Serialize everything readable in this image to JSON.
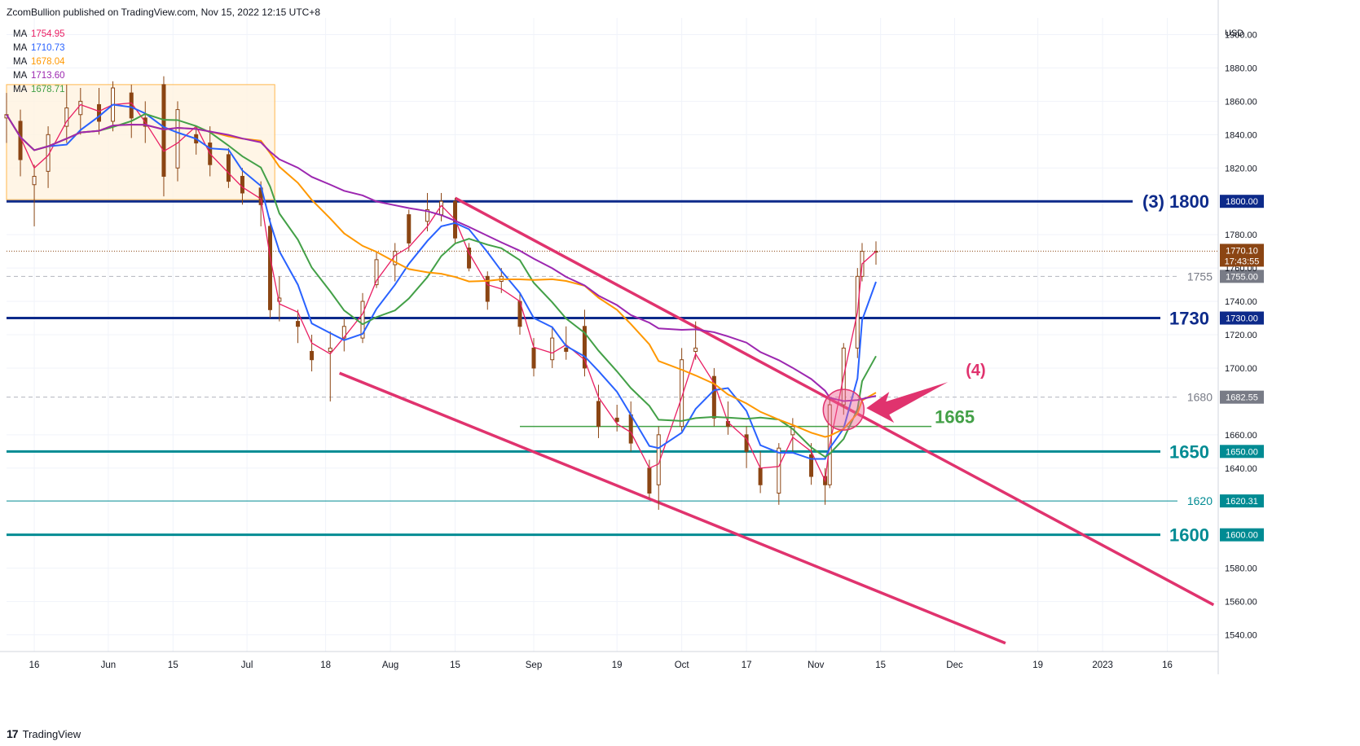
{
  "header": {
    "published": "ZcomBullion published on TradingView.com, Nov 15, 2022 12:15 UTC+8"
  },
  "footer": {
    "brand": "TradingView",
    "logo_text": "17"
  },
  "colors": {
    "ma_fast": "#e91e63",
    "ma_20": "#2962ff",
    "ma_50": "#ff9800",
    "ma_200": "#9c27b0",
    "ma_30": "#43a047",
    "candle": "#8b4513",
    "level_navy": "#0d2a8a",
    "level_teal": "#008b93",
    "channel": "#e0336e"
  },
  "chart_data": {
    "type": "candlestick",
    "currency": "USD",
    "yaxis_ticks": [
      1900,
      1880,
      1860,
      1840,
      1820,
      1780,
      1760,
      1740,
      1720,
      1700,
      1660,
      1640,
      1580,
      1560,
      1540
    ],
    "yaxis_tick_labels": [
      "1900.00",
      "1880.00",
      "1860.00",
      "1840.00",
      "1820.00",
      "1780.00",
      "1760.00",
      "1740.00",
      "1720.00",
      "1700.00",
      "1660.00",
      "1640.00",
      "1580.00",
      "1560.00",
      "1540.00"
    ],
    "ylim": [
      1530,
      1910
    ],
    "xaxis_labels": [
      {
        "label": "16",
        "date": "2022-05-16"
      },
      {
        "label": "Jun",
        "date": "2022-06-01"
      },
      {
        "label": "15",
        "date": "2022-06-15"
      },
      {
        "label": "Jul",
        "date": "2022-07-01"
      },
      {
        "label": "18",
        "date": "2022-07-18"
      },
      {
        "label": "Aug",
        "date": "2022-08-01"
      },
      {
        "label": "15",
        "date": "2022-08-15"
      },
      {
        "label": "Sep",
        "date": "2022-09-01"
      },
      {
        "label": "19",
        "date": "2022-09-19"
      },
      {
        "label": "Oct",
        "date": "2022-10-03"
      },
      {
        "label": "17",
        "date": "2022-10-17"
      },
      {
        "label": "Nov",
        "date": "2022-11-01"
      },
      {
        "label": "15",
        "date": "2022-11-15"
      },
      {
        "label": "Dec",
        "date": "2022-12-01"
      },
      {
        "label": "19",
        "date": "2022-12-19"
      },
      {
        "label": "2023",
        "date": "2023-01-02"
      },
      {
        "label": "16",
        "date": "2023-01-16"
      }
    ],
    "xlim": [
      "2022-05-10",
      "2023-01-27"
    ],
    "moving_averages": [
      {
        "label": "MA",
        "value": "1754.95",
        "color_key": "ma_fast"
      },
      {
        "label": "MA",
        "value": "1710.73",
        "color_key": "ma_20"
      },
      {
        "label": "MA",
        "value": "1678.04",
        "color_key": "ma_50"
      },
      {
        "label": "MA",
        "value": "1713.60",
        "color_key": "ma_200"
      },
      {
        "label": "MA",
        "value": "1678.71",
        "color_key": "ma_30"
      }
    ],
    "horizontal_levels": [
      {
        "value": 1800,
        "label": "(3) 1800",
        "price_tag": "1800.00",
        "style": "thick",
        "color_key": "level_navy"
      },
      {
        "value": 1730,
        "label": "1730",
        "price_tag": "1730.00",
        "style": "thick",
        "color_key": "level_navy"
      },
      {
        "value": 1650,
        "label": "1650",
        "price_tag": "1650.00",
        "style": "thick",
        "color_key": "level_teal"
      },
      {
        "value": 1600,
        "label": "1600",
        "price_tag": "1600.00",
        "style": "thick",
        "color_key": "level_teal"
      },
      {
        "value": 1620.31,
        "label": "1620",
        "price_tag": "1620.31",
        "style": "thin",
        "color_key": "level_teal"
      },
      {
        "value": 1755,
        "label": "1755",
        "price_tag": "1755.00",
        "style": "dashed",
        "color_key": "gray"
      },
      {
        "value": 1682.55,
        "label": "1680",
        "price_tag": "1682.55",
        "style": "dashed",
        "color_key": "gray"
      }
    ],
    "last_price": {
      "value": 1770.1,
      "label": "1770.10",
      "countdown": "17:43:55"
    },
    "support_1665": {
      "value": 1665,
      "label": "1665",
      "x_start": "2022-08-29",
      "x_end": "2022-11-26"
    },
    "annotation_4": {
      "label": "(4)"
    },
    "channel_upper": [
      {
        "x": "2022-08-15",
        "y": 1802
      },
      {
        "x": "2023-01-26",
        "y": 1558
      }
    ],
    "channel_lower": [
      {
        "x": "2022-07-21",
        "y": 1697
      },
      {
        "x": "2022-12-12",
        "y": 1535
      }
    ],
    "highlight_box": {
      "x_start": "2022-05-10",
      "x_end": "2022-07-07",
      "y_low": 1801,
      "y_high": 1870
    },
    "ohlc": [
      {
        "d": "2022-05-10",
        "o": 1850,
        "h": 1865,
        "l": 1835,
        "c": 1852
      },
      {
        "d": "2022-05-13",
        "o": 1848,
        "h": 1855,
        "l": 1815,
        "c": 1825
      },
      {
        "d": "2022-05-16",
        "o": 1810,
        "h": 1822,
        "l": 1785,
        "c": 1815
      },
      {
        "d": "2022-05-19",
        "o": 1818,
        "h": 1845,
        "l": 1808,
        "c": 1840
      },
      {
        "d": "2022-05-23",
        "o": 1845,
        "h": 1870,
        "l": 1835,
        "c": 1856
      },
      {
        "d": "2022-05-26",
        "o": 1852,
        "h": 1868,
        "l": 1840,
        "c": 1860
      },
      {
        "d": "2022-05-30",
        "o": 1858,
        "h": 1868,
        "l": 1840,
        "c": 1848
      },
      {
        "d": "2022-06-02",
        "o": 1848,
        "h": 1872,
        "l": 1842,
        "c": 1868
      },
      {
        "d": "2022-06-06",
        "o": 1865,
        "h": 1870,
        "l": 1838,
        "c": 1850
      },
      {
        "d": "2022-06-09",
        "o": 1850,
        "h": 1860,
        "l": 1835,
        "c": 1845
      },
      {
        "d": "2022-06-13",
        "o": 1870,
        "h": 1875,
        "l": 1803,
        "c": 1815
      },
      {
        "d": "2022-06-16",
        "o": 1820,
        "h": 1860,
        "l": 1812,
        "c": 1855
      },
      {
        "d": "2022-06-20",
        "o": 1840,
        "h": 1845,
        "l": 1828,
        "c": 1835
      },
      {
        "d": "2022-06-23",
        "o": 1835,
        "h": 1845,
        "l": 1815,
        "c": 1822
      },
      {
        "d": "2022-06-27",
        "o": 1828,
        "h": 1832,
        "l": 1808,
        "c": 1812
      },
      {
        "d": "2022-06-30",
        "o": 1815,
        "h": 1820,
        "l": 1798,
        "c": 1805
      },
      {
        "d": "2022-07-04",
        "o": 1808,
        "h": 1812,
        "l": 1785,
        "c": 1798
      },
      {
        "d": "2022-07-06",
        "o": 1785,
        "h": 1790,
        "l": 1730,
        "c": 1735
      },
      {
        "d": "2022-07-08",
        "o": 1740,
        "h": 1755,
        "l": 1728,
        "c": 1742
      },
      {
        "d": "2022-07-12",
        "o": 1728,
        "h": 1735,
        "l": 1715,
        "c": 1725
      },
      {
        "d": "2022-07-15",
        "o": 1710,
        "h": 1720,
        "l": 1698,
        "c": 1705
      },
      {
        "d": "2022-07-19",
        "o": 1710,
        "h": 1722,
        "l": 1680,
        "c": 1712
      },
      {
        "d": "2022-07-22",
        "o": 1718,
        "h": 1730,
        "l": 1710,
        "c": 1725
      },
      {
        "d": "2022-07-26",
        "o": 1718,
        "h": 1745,
        "l": 1715,
        "c": 1740
      },
      {
        "d": "2022-07-29",
        "o": 1750,
        "h": 1770,
        "l": 1748,
        "c": 1765
      },
      {
        "d": "2022-08-02",
        "o": 1762,
        "h": 1775,
        "l": 1752,
        "c": 1770
      },
      {
        "d": "2022-08-05",
        "o": 1792,
        "h": 1795,
        "l": 1770,
        "c": 1775
      },
      {
        "d": "2022-08-09",
        "o": 1788,
        "h": 1805,
        "l": 1782,
        "c": 1795
      },
      {
        "d": "2022-08-12",
        "o": 1792,
        "h": 1805,
        "l": 1788,
        "c": 1800
      },
      {
        "d": "2022-08-15",
        "o": 1800,
        "h": 1802,
        "l": 1775,
        "c": 1778
      },
      {
        "d": "2022-08-18",
        "o": 1772,
        "h": 1775,
        "l": 1758,
        "c": 1760
      },
      {
        "d": "2022-08-22",
        "o": 1755,
        "h": 1758,
        "l": 1735,
        "c": 1740
      },
      {
        "d": "2022-08-25",
        "o": 1752,
        "h": 1760,
        "l": 1745,
        "c": 1755
      },
      {
        "d": "2022-08-29",
        "o": 1740,
        "h": 1745,
        "l": 1720,
        "c": 1725
      },
      {
        "d": "2022-09-01",
        "o": 1712,
        "h": 1718,
        "l": 1695,
        "c": 1700
      },
      {
        "d": "2022-09-05",
        "o": 1705,
        "h": 1725,
        "l": 1700,
        "c": 1718
      },
      {
        "d": "2022-09-08",
        "o": 1712,
        "h": 1725,
        "l": 1705,
        "c": 1710
      },
      {
        "d": "2022-09-12",
        "o": 1725,
        "h": 1735,
        "l": 1695,
        "c": 1700
      },
      {
        "d": "2022-09-15",
        "o": 1680,
        "h": 1690,
        "l": 1658,
        "c": 1665
      },
      {
        "d": "2022-09-19",
        "o": 1670,
        "h": 1678,
        "l": 1662,
        "c": 1668
      },
      {
        "d": "2022-09-22",
        "o": 1672,
        "h": 1680,
        "l": 1650,
        "c": 1655
      },
      {
        "d": "2022-09-26",
        "o": 1640,
        "h": 1645,
        "l": 1622,
        "c": 1625
      },
      {
        "d": "2022-09-28",
        "o": 1630,
        "h": 1665,
        "l": 1615,
        "c": 1660
      },
      {
        "d": "2022-10-03",
        "o": 1665,
        "h": 1712,
        "l": 1662,
        "c": 1705
      },
      {
        "d": "2022-10-06",
        "o": 1710,
        "h": 1728,
        "l": 1705,
        "c": 1712
      },
      {
        "d": "2022-10-10",
        "o": 1695,
        "h": 1700,
        "l": 1665,
        "c": 1670
      },
      {
        "d": "2022-10-13",
        "o": 1668,
        "h": 1680,
        "l": 1660,
        "c": 1665
      },
      {
        "d": "2022-10-17",
        "o": 1660,
        "h": 1665,
        "l": 1640,
        "c": 1650
      },
      {
        "d": "2022-10-20",
        "o": 1640,
        "h": 1650,
        "l": 1625,
        "c": 1630
      },
      {
        "d": "2022-10-24",
        "o": 1625,
        "h": 1655,
        "l": 1618,
        "c": 1652
      },
      {
        "d": "2022-10-27",
        "o": 1660,
        "h": 1670,
        "l": 1650,
        "c": 1665
      },
      {
        "d": "2022-10-31",
        "o": 1648,
        "h": 1655,
        "l": 1630,
        "c": 1635
      },
      {
        "d": "2022-11-03",
        "o": 1635,
        "h": 1640,
        "l": 1618,
        "c": 1630
      },
      {
        "d": "2022-11-04",
        "o": 1630,
        "h": 1682,
        "l": 1628,
        "c": 1678
      },
      {
        "d": "2022-11-07",
        "o": 1678,
        "h": 1715,
        "l": 1672,
        "c": 1712
      },
      {
        "d": "2022-11-10",
        "o": 1712,
        "h": 1760,
        "l": 1706,
        "c": 1755
      },
      {
        "d": "2022-11-11",
        "o": 1755,
        "h": 1775,
        "l": 1752,
        "c": 1770
      },
      {
        "d": "2022-11-14",
        "o": 1770,
        "h": 1776,
        "l": 1762,
        "c": 1770
      }
    ]
  }
}
